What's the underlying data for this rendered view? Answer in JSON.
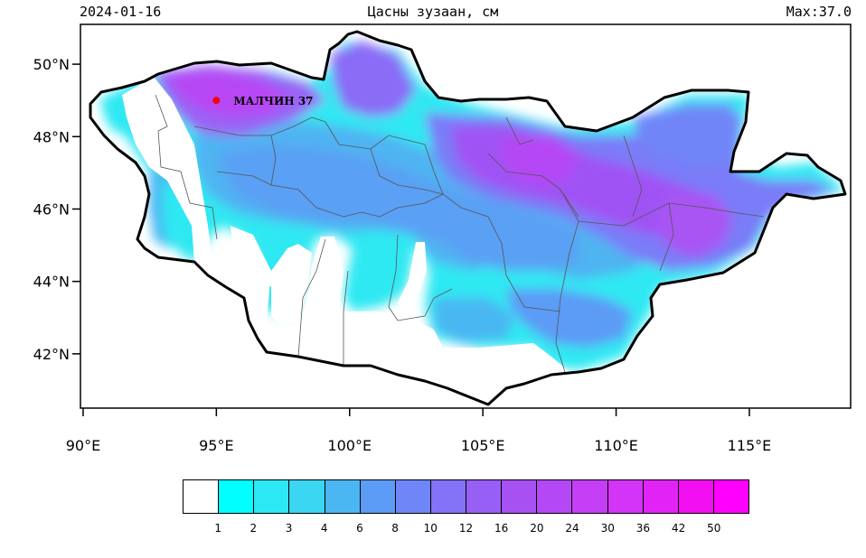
{
  "header": {
    "date": "2024-01-16",
    "title": "Цасны зузаан, см",
    "max": "Max:37.0"
  },
  "map": {
    "lon_ticks": [
      "90°E",
      "95°E",
      "100°E",
      "105°E",
      "110°E",
      "115°E"
    ],
    "lat_ticks": [
      "50°N",
      "48°N",
      "46°N",
      "44°N",
      "42°N"
    ],
    "lon_range": [
      89.9,
      118.8
    ],
    "lat_range": [
      40.5,
      51.1
    ],
    "station": {
      "name": "МАЛЧИН 37",
      "lon": 95.0,
      "lat": 49.0,
      "color": "#ff0000"
    }
  },
  "legend": {
    "colors": [
      "#ffffff",
      "#00ffff",
      "#2ce8f4",
      "#3bd6f2",
      "#4ab7f2",
      "#5c9bf6",
      "#6f86f8",
      "#8373f7",
      "#975ff5",
      "#a751f3",
      "#b548f6",
      "#c43ff4",
      "#d334f7",
      "#e124f5",
      "#f210f2",
      "#ff00ff"
    ],
    "labels": [
      "1",
      "2",
      "3",
      "4",
      "6",
      "8",
      "10",
      "12",
      "16",
      "20",
      "24",
      "30",
      "36",
      "42",
      "50"
    ]
  }
}
